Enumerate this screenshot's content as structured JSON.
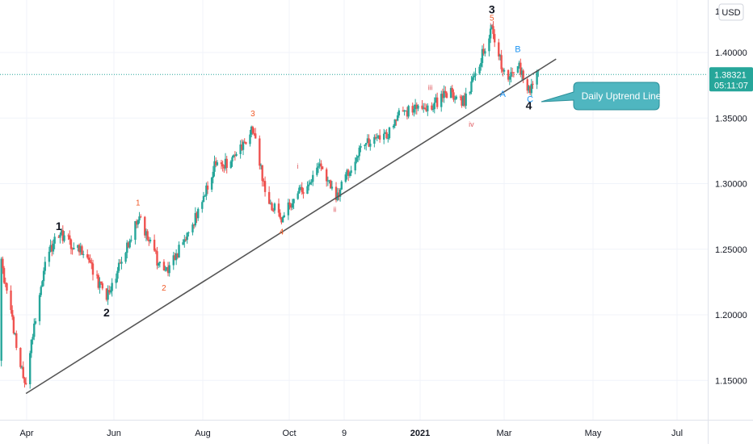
{
  "chart_data": {
    "type": "candlestick",
    "currency_button": "USD",
    "x_ticks": [
      "Apr",
      "Jun",
      "Aug",
      "Oct",
      "9",
      "2021",
      "Mar",
      "May",
      "Jul"
    ],
    "y_ticks": [
      "1.40000",
      "1.35000",
      "1.30000",
      "1.25000",
      "1.20000",
      "1.15000"
    ],
    "y_ticks_numeric": [
      1.4,
      1.35,
      1.3,
      1.25,
      1.2,
      1.15
    ],
    "ylim": [
      1.12,
      1.44
    ],
    "top_clipped_tick": "1.4",
    "last_price": {
      "value": 1.38321,
      "label": "1.38321",
      "countdown": "05:11:07"
    },
    "callout": {
      "text": "Daily Uptrend Line"
    },
    "trend_line": [
      {
        "date": "2020-03-20",
        "price": 1.14
      },
      {
        "date": "2021-04-12",
        "price": 1.395
      }
    ],
    "anchors": [
      {
        "date": "2020-03-19",
        "price": 1.145
      },
      {
        "date": "2020-04-03",
        "price": 1.24
      },
      {
        "date": "2020-04-13",
        "price": 1.262
      },
      {
        "date": "2020-05-01",
        "price": 1.247
      },
      {
        "date": "2020-05-18",
        "price": 1.212
      },
      {
        "date": "2020-06-10",
        "price": 1.275
      },
      {
        "date": "2020-06-29",
        "price": 1.23
      },
      {
        "date": "2020-07-20",
        "price": 1.268
      },
      {
        "date": "2020-08-05",
        "price": 1.314
      },
      {
        "date": "2020-08-20",
        "price": 1.318
      },
      {
        "date": "2020-09-02",
        "price": 1.343
      },
      {
        "date": "2020-09-12",
        "price": 1.29
      },
      {
        "date": "2020-09-23",
        "price": 1.274
      },
      {
        "date": "2020-10-05",
        "price": 1.292
      },
      {
        "date": "2020-10-21",
        "price": 1.311
      },
      {
        "date": "2020-11-02",
        "price": 1.289
      },
      {
        "date": "2020-11-20",
        "price": 1.33
      },
      {
        "date": "2020-12-10",
        "price": 1.336
      },
      {
        "date": "2020-12-17",
        "price": 1.354
      },
      {
        "date": "2021-01-12",
        "price": 1.36
      },
      {
        "date": "2021-01-25",
        "price": 1.37
      },
      {
        "date": "2021-02-04",
        "price": 1.362
      },
      {
        "date": "2021-02-24",
        "price": 1.418
      },
      {
        "date": "2021-03-03",
        "price": 1.39
      },
      {
        "date": "2021-03-08",
        "price": 1.38
      },
      {
        "date": "2021-03-15",
        "price": 1.392
      },
      {
        "date": "2021-03-23",
        "price": 1.37
      },
      {
        "date": "2021-03-30",
        "price": 1.383
      }
    ],
    "wave_labels": [
      {
        "text": "1",
        "date": "2020-04-13",
        "price": 1.267,
        "style": "major"
      },
      {
        "text": "2",
        "date": "2020-05-18",
        "price": 1.201,
        "style": "major"
      },
      {
        "text": "3",
        "date": "2021-02-24",
        "price": 1.432,
        "style": "major"
      },
      {
        "text": "4",
        "date": "2021-03-23",
        "price": 1.359,
        "style": "major"
      },
      {
        "text": "1",
        "date": "2020-06-10",
        "price": 1.285,
        "style": "minor"
      },
      {
        "text": "2",
        "date": "2020-06-29",
        "price": 1.22,
        "style": "minor"
      },
      {
        "text": "3",
        "date": "2020-09-02",
        "price": 1.353,
        "style": "minor"
      },
      {
        "text": "4",
        "date": "2020-09-23",
        "price": 1.263,
        "style": "minor"
      },
      {
        "text": "5",
        "date": "2021-02-24",
        "price": 1.426,
        "style": "minor"
      },
      {
        "text": "i",
        "date": "2020-10-05",
        "price": 1.313,
        "style": "micro"
      },
      {
        "text": "ii",
        "date": "2020-11-01",
        "price": 1.28,
        "style": "micro"
      },
      {
        "text": "iii",
        "date": "2021-01-10",
        "price": 1.373,
        "style": "micro"
      },
      {
        "text": "iv",
        "date": "2021-02-09",
        "price": 1.345,
        "style": "micro"
      },
      {
        "text": "v",
        "date": "2021-02-24",
        "price": 1.421,
        "style": "micro"
      },
      {
        "text": "A",
        "date": "2021-03-04",
        "price": 1.368,
        "style": "corrective"
      },
      {
        "text": "B",
        "date": "2021-03-15",
        "price": 1.402,
        "style": "corrective"
      },
      {
        "text": "C",
        "date": "2021-03-24",
        "price": 1.364,
        "style": "corrective"
      }
    ],
    "colors": {
      "up": "#26a69a",
      "down": "#ef5350",
      "grid": "#f0f3fa",
      "axis_text": "#131722",
      "trend": "#555555",
      "callout_fill": "#4fb6c0",
      "callout_stroke": "#2b8f99",
      "wave_minor": "#f05a28",
      "wave_micro": "#e05a60",
      "wave_corrective": "#2196f3",
      "price_tag": "#26a69a",
      "price_line": "#26a69a"
    }
  }
}
